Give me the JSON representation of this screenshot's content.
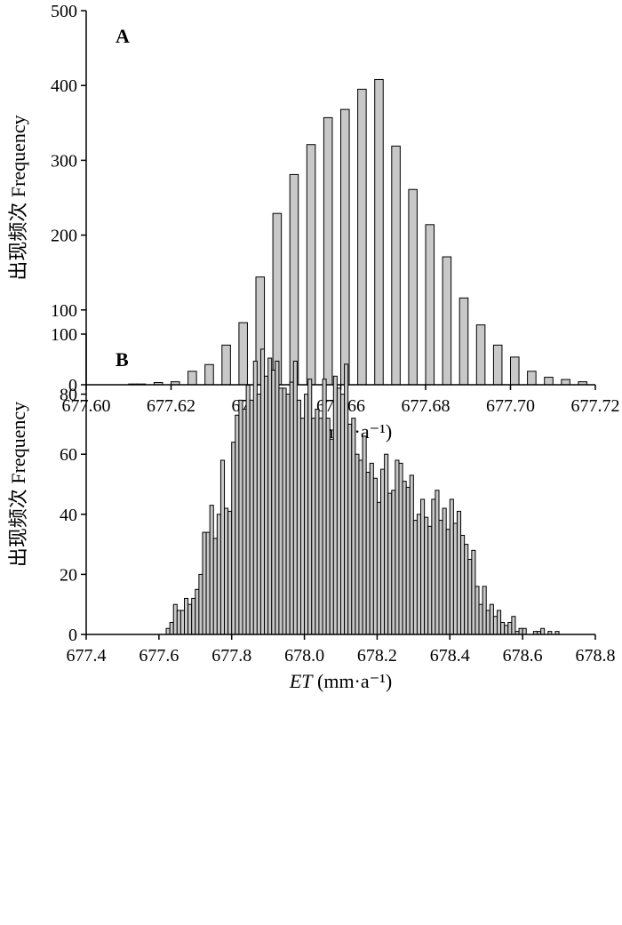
{
  "chart_data": [
    {
      "type": "bar",
      "panel_label": "A",
      "ylabel": "出现频次 Frequency",
      "xlabel": "ET (mm·a⁻¹)",
      "xlabel_italic": "ET",
      "xlabel_unit": "(mm·a⁻¹)",
      "xlim": [
        677.6,
        677.72
      ],
      "ylim": [
        0,
        500
      ],
      "xticks": [
        "677.60",
        "677.62",
        "677.64",
        "677.66",
        "677.68",
        "677.70",
        "677.72"
      ],
      "yticks": [
        "0",
        "100",
        "200",
        "300",
        "400",
        "500"
      ],
      "bin_width": 0.002,
      "x": [
        677.611,
        677.613,
        677.615,
        677.617,
        677.619,
        677.621,
        677.623,
        677.625,
        677.627,
        677.629,
        677.631,
        677.633,
        677.635,
        677.637,
        677.639,
        677.641,
        677.643,
        677.645,
        677.647,
        677.649,
        677.651,
        677.653,
        677.655,
        677.657,
        677.659,
        677.661,
        677.663,
        677.665,
        677.667,
        677.669,
        677.671,
        677.673,
        677.675,
        677.677,
        677.679,
        677.681,
        677.683,
        677.685,
        677.687,
        677.689,
        677.691,
        677.693,
        677.695,
        677.697,
        677.699,
        677.701,
        677.703,
        677.705,
        677.707,
        677.709,
        677.711,
        677.713,
        677.715,
        677.717
      ],
      "values": [
        1,
        1,
        0,
        3,
        0,
        4,
        0,
        18,
        0,
        27,
        0,
        53,
        0,
        83,
        0,
        144,
        0,
        229,
        0,
        281,
        0,
        321,
        0,
        357,
        0,
        368,
        0,
        395,
        0,
        408,
        0,
        319,
        0,
        261,
        0,
        214,
        0,
        171,
        0,
        116,
        0,
        80,
        0,
        53,
        0,
        37,
        0,
        18,
        0,
        10,
        0,
        7,
        0,
        4
      ]
    },
    {
      "type": "bar",
      "panel_label": "B",
      "ylabel": "出现频次 Frequency",
      "xlabel": "ET (mm·a⁻¹)",
      "xlabel_italic": "ET",
      "xlabel_unit": "(mm·a⁻¹)",
      "xlim": [
        677.4,
        678.8
      ],
      "ylim": [
        0,
        100
      ],
      "xticks": [
        "677.4",
        "677.6",
        "677.8",
        "678.0",
        "678.2",
        "678.4",
        "678.6",
        "678.8"
      ],
      "yticks": [
        "0",
        "20",
        "40",
        "60",
        "80",
        "100"
      ],
      "bin_width": 0.01,
      "x": [
        677.625,
        677.635,
        677.645,
        677.655,
        677.665,
        677.675,
        677.685,
        677.695,
        677.705,
        677.715,
        677.725,
        677.735,
        677.745,
        677.755,
        677.765,
        677.775,
        677.785,
        677.795,
        677.805,
        677.815,
        677.825,
        677.835,
        677.845,
        677.855,
        677.865,
        677.875,
        677.885,
        677.895,
        677.905,
        677.915,
        677.925,
        677.935,
        677.945,
        677.955,
        677.965,
        677.975,
        677.985,
        677.995,
        678.005,
        678.015,
        678.025,
        678.035,
        678.045,
        678.055,
        678.065,
        678.075,
        678.085,
        678.095,
        678.105,
        678.115,
        678.125,
        678.135,
        678.145,
        678.155,
        678.165,
        678.175,
        678.185,
        678.195,
        678.205,
        678.215,
        678.225,
        678.235,
        678.245,
        678.255,
        678.265,
        678.275,
        678.285,
        678.295,
        678.305,
        678.315,
        678.325,
        678.335,
        678.345,
        678.355,
        678.365,
        678.375,
        678.385,
        678.395,
        678.405,
        678.415,
        678.425,
        678.435,
        678.445,
        678.455,
        678.465,
        678.475,
        678.485,
        678.495,
        678.505,
        678.515,
        678.525,
        678.535,
        678.545,
        678.555,
        678.565,
        678.575,
        678.585,
        678.595,
        678.605,
        678.615,
        678.625,
        678.635,
        678.645,
        678.655,
        678.665,
        678.675,
        678.685,
        678.695
      ],
      "values": [
        2,
        4,
        10,
        8,
        8,
        12,
        10,
        12,
        15,
        20,
        34,
        34,
        43,
        32,
        40,
        58,
        42,
        41,
        64,
        73,
        78,
        75,
        83,
        78,
        91,
        80,
        95,
        86,
        92,
        88,
        91,
        82,
        82,
        80,
        84,
        91,
        78,
        72,
        80,
        85,
        72,
        75,
        72,
        85,
        72,
        65,
        86,
        82,
        80,
        90,
        70,
        72,
        60,
        58,
        66,
        54,
        57,
        52,
        44,
        55,
        60,
        47,
        48,
        58,
        57,
        51,
        49,
        53,
        38,
        40,
        45,
        39,
        36,
        45,
        48,
        38,
        42,
        35,
        45,
        37,
        41,
        33,
        30,
        25,
        28,
        16,
        10,
        16,
        8,
        10,
        6,
        8,
        4,
        3,
        4,
        6,
        1,
        2,
        2,
        0,
        0,
        1,
        1,
        2,
        0,
        1,
        0,
        1
      ]
    }
  ]
}
